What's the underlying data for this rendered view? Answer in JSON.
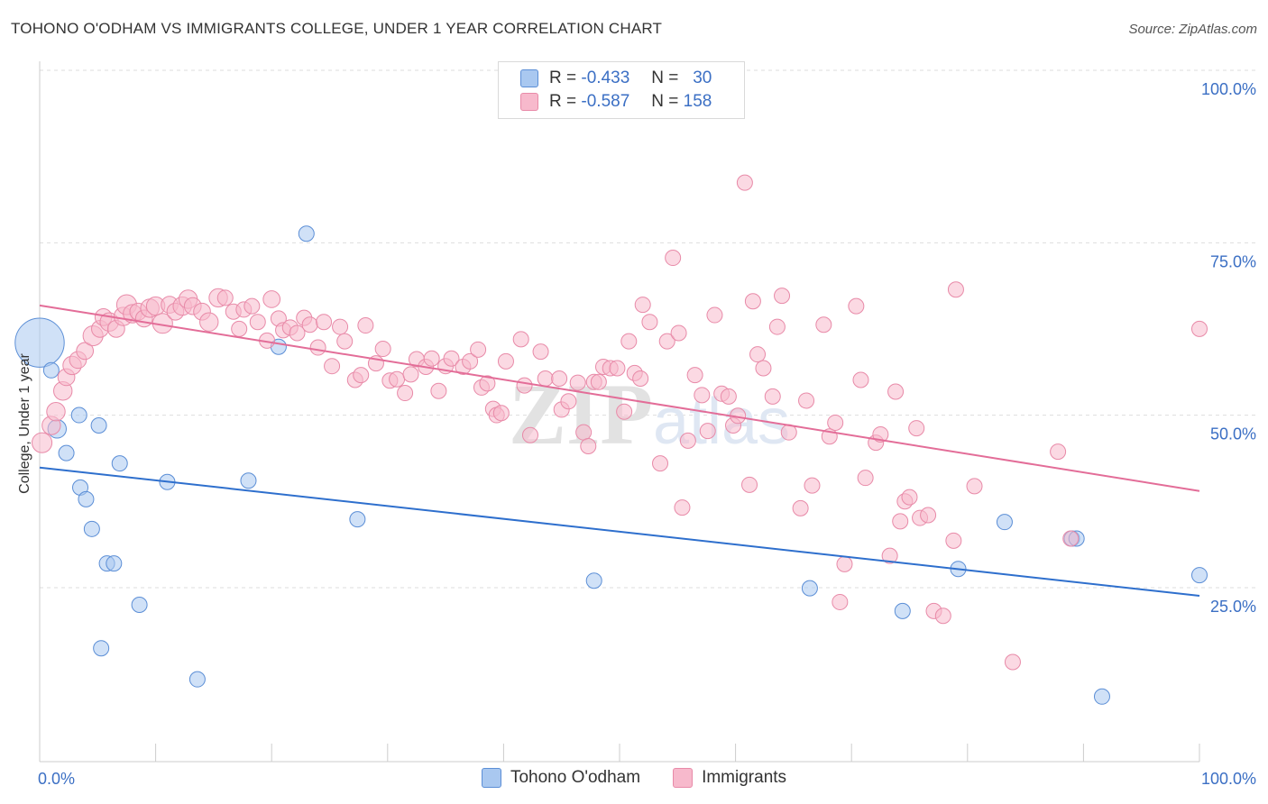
{
  "title": "TOHONO O'ODHAM VS IMMIGRANTS COLLEGE, UNDER 1 YEAR CORRELATION CHART",
  "source": "Source: ZipAtlas.com",
  "watermark": "ZIPatlas",
  "legend": {
    "rows": [
      {
        "r_label": "R =",
        "r_value": "-0.433",
        "n_label": "N =",
        "n_value": "30",
        "color": "#a9c8f0",
        "border": "#5b8ed6"
      },
      {
        "r_label": "R =",
        "r_value": "-0.587",
        "n_label": "N =",
        "n_value": "158",
        "color": "#f7b9cc",
        "border": "#e88aa8"
      }
    ]
  },
  "bottom_legend": [
    {
      "label": "Tohono O'odham",
      "color": "#a9c8f0",
      "border": "#5b8ed6"
    },
    {
      "label": "Immigrants",
      "color": "#f7b9cc",
      "border": "#e88aa8"
    }
  ],
  "chart_data": {
    "type": "scatter",
    "ylabel": "College, Under 1 year",
    "xlim": [
      0,
      100
    ],
    "ylim": [
      5,
      102
    ],
    "x_tick_labels": [
      "0.0%",
      "100.0%"
    ],
    "y_ticks": [
      25,
      50,
      75,
      100
    ],
    "y_tick_labels": [
      "25.0%",
      "50.0%",
      "75.0%",
      "100.0%"
    ],
    "grid": true,
    "series": [
      {
        "name": "Tohono O'odham",
        "color": "#a9c8f0",
        "stroke": "#5b8ed6",
        "trend": {
          "x": [
            0,
            100
          ],
          "y": [
            44.9,
            26.3
          ],
          "color": "#2e6fcd"
        },
        "points": [
          [
            0,
            63,
            3.2
          ],
          [
            1,
            59,
            1
          ],
          [
            1.5,
            50.5,
            1.2
          ],
          [
            2.3,
            47,
            1
          ],
          [
            3.4,
            52.5,
            1
          ],
          [
            3.5,
            42,
            1
          ],
          [
            4,
            40.3,
            1
          ],
          [
            4.5,
            36,
            1
          ],
          [
            5.1,
            51,
            1
          ],
          [
            5.3,
            18.7,
            1
          ],
          [
            5.8,
            31,
            1
          ],
          [
            6.4,
            31,
            1
          ],
          [
            6.9,
            45.5,
            1
          ],
          [
            8.6,
            25,
            1
          ],
          [
            11,
            42.8,
            1
          ],
          [
            13.6,
            14.2,
            1
          ],
          [
            18,
            43,
            1
          ],
          [
            20.6,
            62.4,
            1
          ],
          [
            23,
            78.8,
            1
          ],
          [
            27.4,
            37.4,
            1
          ],
          [
            47.8,
            28.5,
            1
          ],
          [
            66.4,
            27.4,
            1
          ],
          [
            74.4,
            24.1,
            1
          ],
          [
            79.2,
            30.2,
            1
          ],
          [
            83.2,
            37,
            1
          ],
          [
            89,
            34.6,
            1
          ],
          [
            89.4,
            34.6,
            1
          ],
          [
            91.6,
            11.7,
            1
          ],
          [
            100,
            29.3,
            1
          ]
        ]
      },
      {
        "name": "Immigrants",
        "color": "#f7b9cc",
        "stroke": "#e88aa8",
        "trend": {
          "x": [
            0,
            100
          ],
          "y": [
            68.4,
            41.5
          ],
          "color": "#e36d98"
        },
        "points": [
          [
            0.2,
            48.5,
            1.3
          ],
          [
            1,
            51,
            1.2
          ],
          [
            1.4,
            53,
            1.2
          ],
          [
            2,
            56,
            1.2
          ],
          [
            2.3,
            58,
            1.1
          ],
          [
            2.8,
            59.7,
            1.2
          ],
          [
            3.3,
            60.5,
            1.1
          ],
          [
            3.9,
            61.8,
            1.1
          ],
          [
            4.6,
            64,
            1.3
          ],
          [
            5.2,
            65,
            1.1
          ],
          [
            5.5,
            66.7,
            1.1
          ],
          [
            6,
            66,
            1.2
          ],
          [
            6.6,
            65,
            1.1
          ],
          [
            7.2,
            66.8,
            1.2
          ],
          [
            7.5,
            68.5,
            1.3
          ],
          [
            8,
            67.2,
            1.2
          ],
          [
            8.5,
            67.5,
            1.1
          ],
          [
            9,
            66.5,
            1.1
          ],
          [
            9.5,
            68,
            1.2
          ],
          [
            10,
            68.3,
            1.2
          ],
          [
            10.6,
            65.8,
            1.3
          ],
          [
            11.2,
            68.5,
            1.1
          ],
          [
            11.7,
            67.5,
            1.1
          ],
          [
            12.3,
            68.3,
            1.2
          ],
          [
            12.8,
            69.3,
            1.2
          ],
          [
            13.2,
            68.3,
            1.1
          ],
          [
            14,
            67.5,
            1.1
          ],
          [
            14.6,
            66,
            1.2
          ],
          [
            15.4,
            69.5,
            1.2
          ],
          [
            16,
            69.5,
            1
          ],
          [
            16.7,
            67.5,
            1
          ],
          [
            17.2,
            65,
            1
          ],
          [
            17.6,
            67.8,
            1
          ],
          [
            18.3,
            68.3,
            1
          ],
          [
            18.8,
            66,
            1
          ],
          [
            19.6,
            63.3,
            1
          ],
          [
            20,
            69.3,
            1.1
          ],
          [
            20.6,
            66.5,
            1
          ],
          [
            21,
            64.8,
            1
          ],
          [
            21.6,
            65.2,
            1
          ],
          [
            22.2,
            64.4,
            1
          ],
          [
            22.8,
            66.6,
            1
          ],
          [
            23.3,
            65.6,
            1
          ],
          [
            24,
            62.3,
            1
          ],
          [
            24.5,
            66,
            1
          ],
          [
            25.2,
            59.6,
            1
          ],
          [
            25.9,
            65.3,
            1
          ],
          [
            26.3,
            63.2,
            1
          ],
          [
            27.2,
            57.6,
            1
          ],
          [
            27.7,
            58.3,
            1
          ],
          [
            28.1,
            65.5,
            1
          ],
          [
            29,
            60,
            1
          ],
          [
            29.6,
            62.1,
            1
          ],
          [
            30.2,
            57.5,
            1
          ],
          [
            30.8,
            57.7,
            1
          ],
          [
            31.5,
            55.7,
            1
          ],
          [
            32,
            58.4,
            1
          ],
          [
            32.5,
            60.6,
            1
          ],
          [
            33.3,
            59.5,
            1
          ],
          [
            33.8,
            60.7,
            1
          ],
          [
            34.4,
            56,
            1
          ],
          [
            35,
            59.6,
            1
          ],
          [
            35.5,
            60.7,
            1
          ],
          [
            36.5,
            59.5,
            1
          ],
          [
            37.1,
            60.3,
            1
          ],
          [
            37.8,
            62,
            1
          ],
          [
            38.1,
            56.5,
            1
          ],
          [
            38.6,
            57.1,
            1
          ],
          [
            39.1,
            53.4,
            1
          ],
          [
            39.4,
            52.5,
            1
          ],
          [
            39.8,
            52.8,
            1
          ],
          [
            40.2,
            60.3,
            1
          ],
          [
            41.5,
            63.5,
            1
          ],
          [
            41.8,
            56.8,
            1
          ],
          [
            42.3,
            49.6,
            1
          ],
          [
            43.2,
            61.7,
            1
          ],
          [
            43.6,
            57.8,
            1
          ],
          [
            44.8,
            57.8,
            1
          ],
          [
            45,
            53.3,
            1
          ],
          [
            45.6,
            54.5,
            1
          ],
          [
            46.4,
            57.2,
            1
          ],
          [
            46.9,
            50,
            1
          ],
          [
            47.3,
            48,
            1
          ],
          [
            47.8,
            57.3,
            1
          ],
          [
            48.2,
            57.3,
            1
          ],
          [
            48.6,
            59.5,
            1
          ],
          [
            49.2,
            59.3,
            1
          ],
          [
            49.8,
            59.3,
            1
          ],
          [
            50.4,
            53,
            1
          ],
          [
            50.8,
            63.2,
            1
          ],
          [
            51.3,
            58.6,
            1
          ],
          [
            51.8,
            57.8,
            1
          ],
          [
            52,
            68.5,
            1
          ],
          [
            52.6,
            66,
            1
          ],
          [
            53.5,
            45.5,
            1
          ],
          [
            54.1,
            63.2,
            1
          ],
          [
            54.6,
            75.3,
            1
          ],
          [
            55.1,
            64.4,
            1
          ],
          [
            55.4,
            39.1,
            1
          ],
          [
            55.9,
            48.8,
            1
          ],
          [
            56.5,
            58.3,
            1
          ],
          [
            57.1,
            55.4,
            1
          ],
          [
            57.6,
            50.2,
            1
          ],
          [
            58.2,
            67,
            1
          ],
          [
            58.8,
            55.6,
            1
          ],
          [
            59.4,
            55.2,
            1
          ],
          [
            59.8,
            51,
            1
          ],
          [
            60.2,
            52.4,
            1
          ],
          [
            60.8,
            86.2,
            1
          ],
          [
            61.2,
            42.4,
            1
          ],
          [
            61.5,
            69,
            1
          ],
          [
            61.9,
            61.3,
            1
          ],
          [
            62.4,
            59.3,
            1
          ],
          [
            63.2,
            55.2,
            1
          ],
          [
            63.6,
            65.3,
            1
          ],
          [
            64,
            69.8,
            1
          ],
          [
            64.6,
            50,
            1
          ],
          [
            65.6,
            39,
            1
          ],
          [
            66.1,
            54.6,
            1
          ],
          [
            66.6,
            42.3,
            1
          ],
          [
            67.6,
            65.6,
            1
          ],
          [
            68.1,
            49.4,
            1
          ],
          [
            68.6,
            51.4,
            1
          ],
          [
            69,
            25.4,
            1
          ],
          [
            69.4,
            30.9,
            1
          ],
          [
            70.4,
            68.3,
            1
          ],
          [
            70.8,
            57.6,
            1
          ],
          [
            71.2,
            43.4,
            1
          ],
          [
            72.1,
            48.5,
            1
          ],
          [
            72.5,
            49.7,
            1
          ],
          [
            73.3,
            32.1,
            1
          ],
          [
            73.8,
            55.9,
            1
          ],
          [
            74.2,
            37.1,
            1
          ],
          [
            74.6,
            40,
            1
          ],
          [
            75,
            40.6,
            1
          ],
          [
            75.6,
            50.6,
            1
          ],
          [
            75.9,
            37.6,
            1
          ],
          [
            76.6,
            38,
            1
          ],
          [
            77.1,
            24.1,
            1
          ],
          [
            77.9,
            23.4,
            1
          ],
          [
            78.8,
            34.3,
            1
          ],
          [
            79,
            70.7,
            1
          ],
          [
            80.6,
            42.2,
            1
          ],
          [
            83.9,
            16.7,
            1
          ],
          [
            88.9,
            34.6,
            1
          ],
          [
            87.8,
            47.2,
            1
          ],
          [
            100,
            65,
            1
          ]
        ]
      }
    ]
  }
}
